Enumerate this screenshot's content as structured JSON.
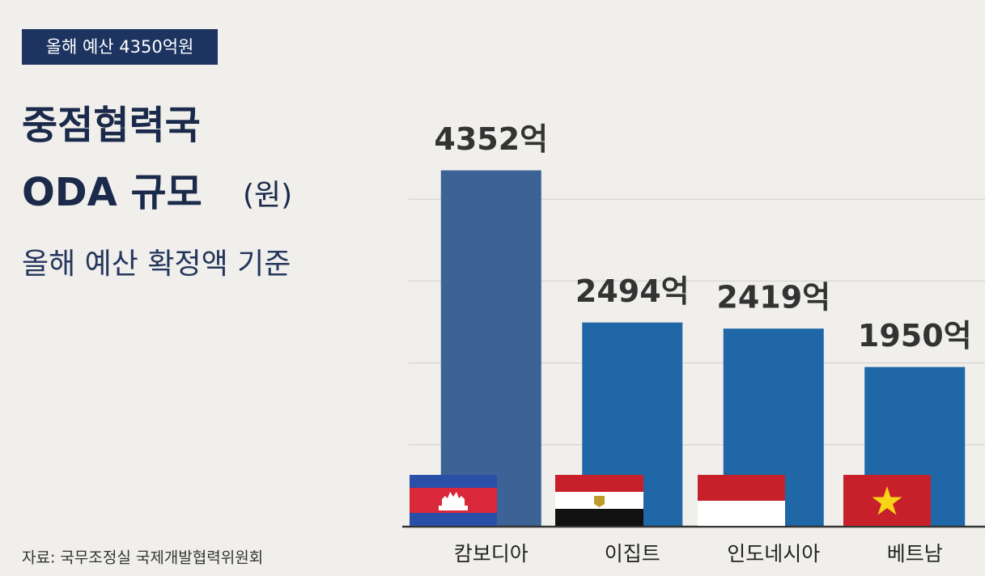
{
  "chart_data": {
    "type": "bar",
    "badge": "올해 예산 4350억원",
    "title": [
      "중점협력국",
      "ODA 규모"
    ],
    "unit": "(원)",
    "subtitle": "올해 예산 확정액 기준",
    "source": "자료: 국무조정실 국제개발협력위원회",
    "categories": [
      "캄보디아",
      "이집트",
      "인도네시아",
      "베트남"
    ],
    "values": [
      4352,
      2494,
      2419,
      1950
    ],
    "value_labels": [
      "4352억",
      "2494억",
      "2419억",
      "1950억"
    ],
    "colors": [
      "#3d6296",
      "#1f67a6",
      "#1f67a6",
      "#1f67a6"
    ],
    "ylim": [
      0,
      5000
    ],
    "yticks": [
      1000,
      2000,
      3000,
      4000
    ],
    "grid": true
  }
}
